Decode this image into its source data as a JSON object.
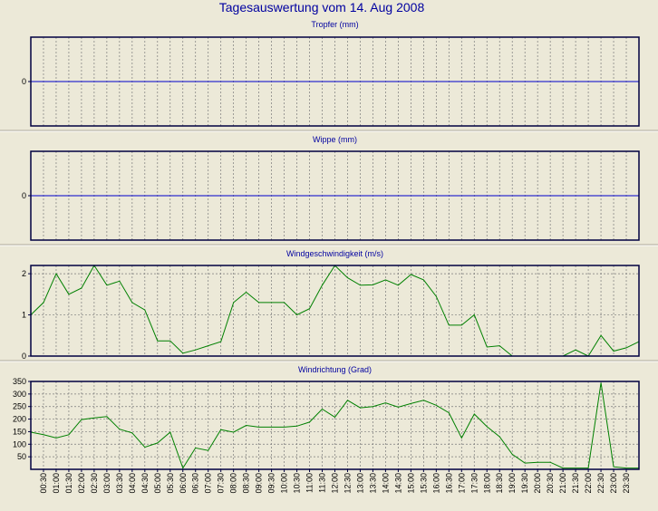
{
  "page": {
    "title": "Tagesauswertung vom 14. Aug 2008",
    "colors": {
      "background": "#ece9d8",
      "plot_background": "#ece9d8",
      "title": "#0000a0",
      "axis_frame": "#000040",
      "zero_line": "#0000cc",
      "series_line": "#008000",
      "grid": "#7a7a7a",
      "separator": "#ffffff"
    }
  },
  "chart_data": [
    {
      "type": "line",
      "title": "Tropfer (mm)",
      "yticks": [
        0
      ],
      "ylim": [
        -1,
        1
      ],
      "zero_line": true,
      "grid": true,
      "series": []
    },
    {
      "type": "line",
      "title": "Wippe (mm)",
      "yticks": [
        0
      ],
      "ylim": [
        -1,
        1
      ],
      "zero_line": true,
      "grid": true,
      "series": []
    },
    {
      "type": "line",
      "title": "Windgeschwindigkeit (m/s)",
      "yticks": [
        0,
        1,
        2
      ],
      "ylim": [
        0,
        2.2
      ],
      "grid": true,
      "series": [
        {
          "values": [
            1.0,
            1.3,
            2.0,
            1.5,
            1.65,
            2.2,
            1.72,
            1.82,
            1.3,
            1.12,
            0.37,
            0.37,
            0.07,
            0.15,
            0.25,
            0.35,
            1.3,
            1.55,
            1.3,
            1.3,
            1.3,
            1.0,
            1.15,
            1.72,
            2.2,
            1.9,
            1.72,
            1.73,
            1.85,
            1.72,
            1.98,
            1.85,
            1.45,
            0.75,
            0.75,
            1.0,
            0.22,
            0.25,
            0.0,
            0.0,
            0.0,
            0.0,
            0.0,
            0.15,
            0.0,
            0.5,
            0.12,
            0.2,
            0.35
          ]
        }
      ]
    },
    {
      "type": "line",
      "title": "Windrichtung (Grad)",
      "yticks": [
        50,
        100,
        150,
        200,
        250,
        300,
        350
      ],
      "ylim": [
        0,
        350
      ],
      "grid": true,
      "series": [
        {
          "values": [
            148,
            138,
            125,
            138,
            198,
            205,
            210,
            160,
            145,
            88,
            105,
            148,
            5,
            85,
            75,
            158,
            148,
            175,
            168,
            168,
            168,
            172,
            188,
            240,
            208,
            275,
            245,
            250,
            265,
            248,
            262,
            275,
            255,
            225,
            125,
            220,
            170,
            130,
            60,
            25,
            28,
            28,
            5,
            5,
            5,
            345,
            10,
            5,
            5
          ]
        }
      ]
    }
  ],
  "x_axis": {
    "tick_labels": [
      "00:30",
      "01:00",
      "01:30",
      "02:00",
      "02:30",
      "03:00",
      "03:30",
      "04:00",
      "04:30",
      "05:00",
      "05:30",
      "06:00",
      "06:30",
      "07:00",
      "07:30",
      "08:00",
      "08:30",
      "09:00",
      "09:30",
      "10:00",
      "10:30",
      "11:00",
      "11:30",
      "12:00",
      "12:30",
      "13:00",
      "13:30",
      "14:00",
      "14:30",
      "15:00",
      "15:30",
      "16:00",
      "16:30",
      "17:00",
      "17:30",
      "18:00",
      "18:30",
      "19:00",
      "19:30",
      "20:00",
      "20:30",
      "21:00",
      "21:30",
      "22:00",
      "22:30",
      "23:00",
      "23:30"
    ]
  }
}
